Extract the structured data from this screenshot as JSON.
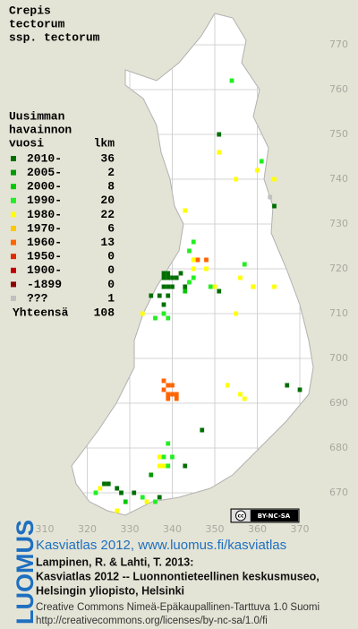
{
  "title": [
    "Crepis",
    "tectorum",
    "ssp. tectorum"
  ],
  "legend": {
    "header": [
      "Uusimman",
      "havainnon"
    ],
    "col_label": "vuosi",
    "col_count": "lkm",
    "rows": [
      {
        "label": "2010-",
        "count": 36,
        "color": "#006f00"
      },
      {
        "label": "2005-",
        "count": 2,
        "color": "#009a00"
      },
      {
        "label": "2000-",
        "count": 8,
        "color": "#00c800"
      },
      {
        "label": "1990-",
        "count": 20,
        "color": "#22ee22"
      },
      {
        "label": "1980-",
        "count": 22,
        "color": "#ffff00"
      },
      {
        "label": "1970-",
        "count": 6,
        "color": "#ffc800"
      },
      {
        "label": "1960-",
        "count": 13,
        "color": "#ff6400"
      },
      {
        "label": "1950-",
        "count": 0,
        "color": "#e02800"
      },
      {
        "label": "1900-",
        "count": 0,
        "color": "#c00000"
      },
      {
        "label": "-1899",
        "count": 0,
        "color": "#880000"
      },
      {
        "label": "???",
        "count": 1,
        "color": "#c0c0c0"
      }
    ],
    "total_label": "Yhteensä",
    "total": 108
  },
  "map": {
    "xticks": [
      310,
      320,
      330,
      340,
      350,
      360,
      370
    ],
    "yticks": [
      770,
      760,
      750,
      740,
      730,
      720,
      710,
      700,
      690,
      680,
      670
    ],
    "observations": [
      [
        354,
        762,
        3
      ],
      [
        351,
        750,
        0
      ],
      [
        351,
        746,
        4
      ],
      [
        361,
        744,
        3
      ],
      [
        360,
        742,
        4
      ],
      [
        355,
        740,
        4
      ],
      [
        364,
        740,
        4
      ],
      [
        363,
        736,
        10
      ],
      [
        364,
        734,
        0
      ],
      [
        343,
        733,
        4
      ],
      [
        345,
        726,
        3
      ],
      [
        344,
        724,
        3
      ],
      [
        345,
        722,
        4
      ],
      [
        346,
        722,
        6
      ],
      [
        348,
        722,
        6
      ],
      [
        345,
        720,
        4
      ],
      [
        348,
        720,
        4
      ],
      [
        338,
        719,
        0
      ],
      [
        339,
        719,
        0
      ],
      [
        338,
        718,
        0
      ],
      [
        339,
        718,
        0
      ],
      [
        341,
        718,
        0
      ],
      [
        339,
        716,
        0
      ],
      [
        340,
        716,
        0
      ],
      [
        339,
        714,
        0
      ],
      [
        342,
        719,
        0
      ],
      [
        340,
        718,
        0
      ],
      [
        338,
        716,
        0
      ],
      [
        335,
        714,
        0
      ],
      [
        337,
        714,
        0
      ],
      [
        338,
        712,
        0
      ],
      [
        336,
        709,
        3
      ],
      [
        338,
        710,
        3
      ],
      [
        339,
        709,
        3
      ],
      [
        333,
        710,
        4
      ],
      [
        343,
        716,
        0
      ],
      [
        344,
        717,
        3
      ],
      [
        345,
        718,
        3
      ],
      [
        343,
        715,
        2
      ],
      [
        350,
        716,
        4
      ],
      [
        351,
        715,
        0
      ],
      [
        356,
        718,
        4
      ],
      [
        357,
        721,
        3
      ],
      [
        359,
        716,
        4
      ],
      [
        364,
        716,
        4
      ],
      [
        355,
        710,
        4
      ],
      [
        349,
        716,
        3
      ],
      [
        338,
        695,
        6
      ],
      [
        339,
        694,
        6
      ],
      [
        340,
        694,
        6
      ],
      [
        339,
        692,
        6
      ],
      [
        340,
        692,
        6
      ],
      [
        341,
        692,
        6
      ],
      [
        339,
        691,
        6
      ],
      [
        341,
        691,
        6
      ],
      [
        338,
        693,
        6
      ],
      [
        353,
        694,
        4
      ],
      [
        356,
        692,
        4
      ],
      [
        367,
        694,
        0
      ],
      [
        370,
        693,
        0
      ],
      [
        357,
        691,
        4
      ],
      [
        347,
        684,
        0
      ],
      [
        339,
        681,
        3
      ],
      [
        337,
        678,
        4
      ],
      [
        338,
        678,
        3
      ],
      [
        340,
        678,
        3
      ],
      [
        337,
        676,
        4
      ],
      [
        338,
        676,
        4
      ],
      [
        339,
        676,
        3
      ],
      [
        343,
        676,
        0
      ],
      [
        335,
        674,
        1
      ],
      [
        325,
        672,
        0
      ],
      [
        324,
        672,
        0
      ],
      [
        327,
        671,
        0
      ],
      [
        328,
        670,
        0
      ],
      [
        322,
        670,
        3
      ],
      [
        323,
        671,
        4
      ],
      [
        331,
        670,
        0
      ],
      [
        329,
        668,
        2
      ],
      [
        333,
        669,
        3
      ],
      [
        334,
        668,
        4
      ],
      [
        336,
        668,
        3
      ],
      [
        337,
        669,
        0
      ],
      [
        327,
        666,
        4
      ]
    ]
  },
  "badge": {
    "icon": "cc",
    "text": "BY-NC-SA"
  },
  "logo": "LUOMUS",
  "footer": {
    "link": "Kasviatlas 2012, www.luomus.fi/kasviatlas",
    "citation": [
      "Lampinen, R. & Lahti, T. 2013:",
      "Kasviatlas 2012 -- Luonnontieteellinen keskusmuseo,",
      "Helsingin yliopisto, Helsinki"
    ],
    "license": "Creative Commons Nimeä-Epäkaupallinen-Tarttuva 1.0 Suomi",
    "url": "http://creativecommons.org/licenses/by-nc-sa/1.0/fi"
  }
}
